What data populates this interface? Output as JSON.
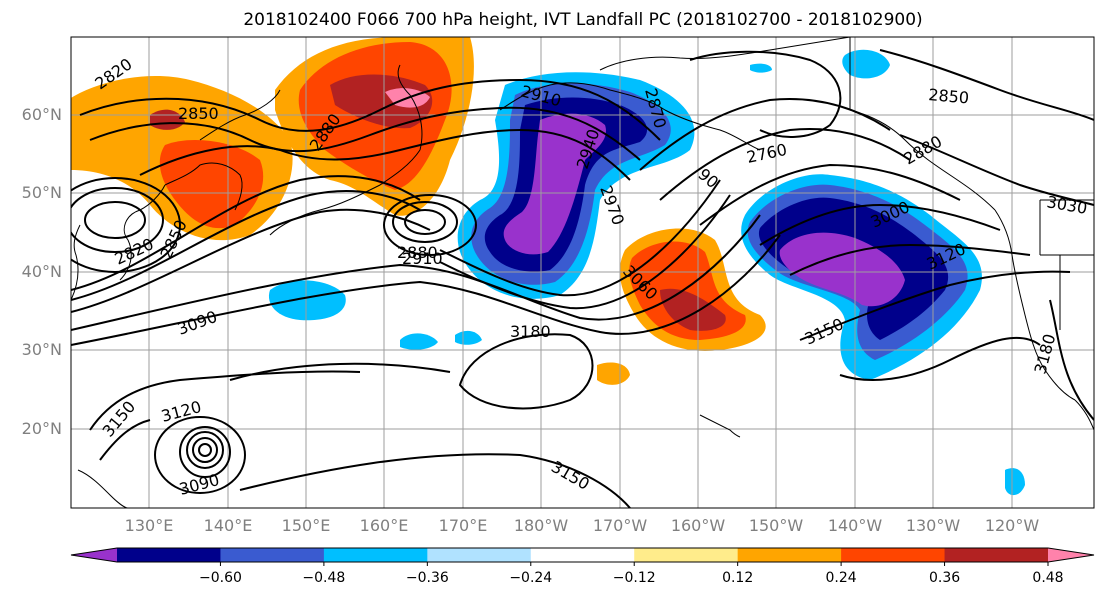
{
  "title": "2018102400 F066 700 hPa height, IVT Landfall PC (2018102700 - 2018102900)",
  "map": {
    "lat_labels": [
      "60°N",
      "50°N",
      "40°N",
      "30°N",
      "20°N"
    ],
    "lon_labels": [
      "130°E",
      "140°E",
      "150°E",
      "160°E",
      "170°E",
      "180°W",
      "170°W",
      "160°W",
      "150°W",
      "140°W",
      "130°W",
      "120°W"
    ],
    "contour_labels": [
      {
        "id": "c2820a",
        "text": "2820"
      },
      {
        "id": "c2850a",
        "text": "2850"
      },
      {
        "id": "c2880a",
        "text": "2880"
      },
      {
        "id": "c2910a",
        "text": "2910"
      },
      {
        "id": "c2940a",
        "text": "2940"
      },
      {
        "id": "c2970a",
        "text": "2970"
      },
      {
        "id": "c2870b",
        "text": "2870"
      },
      {
        "id": "c2760",
        "text": "2760"
      },
      {
        "id": "c2850b",
        "text": "2850"
      },
      {
        "id": "c2880b",
        "text": "2880"
      },
      {
        "id": "c3030",
        "text": "3030"
      },
      {
        "id": "c3000",
        "text": "3000"
      },
      {
        "id": "c3120a",
        "text": "3120"
      },
      {
        "id": "c3150a",
        "text": "3150"
      },
      {
        "id": "c3180a",
        "text": "3180"
      },
      {
        "id": "c3060",
        "text": "3060"
      },
      {
        "id": "c2820b",
        "text": "2820"
      },
      {
        "id": "c2850c",
        "text": "2850"
      },
      {
        "id": "c3090a",
        "text": "3090"
      },
      {
        "id": "c2880c",
        "text": "2880"
      },
      {
        "id": "c2910b",
        "text": "2910"
      },
      {
        "id": "c3180b",
        "text": "3180"
      },
      {
        "id": "c3150b",
        "text": "3150"
      },
      {
        "id": "c3120b",
        "text": "3120"
      },
      {
        "id": "c3090b",
        "text": "3090"
      },
      {
        "id": "c3150c",
        "text": "3150"
      },
      {
        "id": "c90",
        "text": "90"
      }
    ]
  },
  "colorbar": {
    "colors": [
      "#9932cc",
      "#00008b",
      "#3a5bd0",
      "#00bfff",
      "#b0e2ff",
      "#ffffff",
      "#ffec8b",
      "#ffa500",
      "#ff4500",
      "#b22222",
      "#ff82ab"
    ],
    "tick_labels": [
      "−0.60",
      "−0.48",
      "−0.36",
      "−0.24",
      "−0.12",
      "0.12",
      "0.24",
      "0.36",
      "0.48",
      "0.60"
    ]
  }
}
